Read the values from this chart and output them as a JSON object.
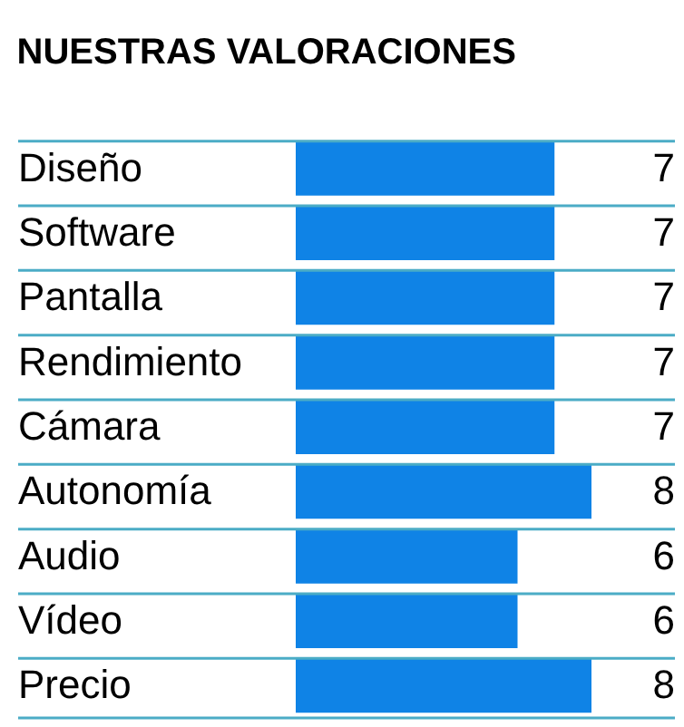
{
  "chart_data": {
    "type": "bar",
    "orientation": "horizontal",
    "title": "NUESTRAS VALORACIONES",
    "categories": [
      "Diseño",
      "Software",
      "Pantalla",
      "Rendimiento",
      "Cámara",
      "Autonomía",
      "Audio",
      "Vídeo",
      "Precio"
    ],
    "values": [
      7,
      7,
      7,
      7,
      7,
      8,
      6,
      6,
      8
    ],
    "color": "#0f83e6",
    "xlim": [
      0,
      8
    ],
    "data_labels": true,
    "grid": "y",
    "tick_labels": "y"
  }
}
